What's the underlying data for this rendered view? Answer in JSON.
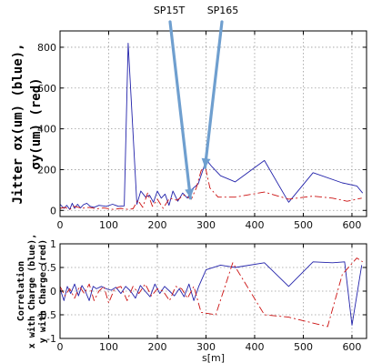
{
  "chart_data": [
    {
      "type": "line",
      "ylabel_line1": "Jitter σx(um) (blue),",
      "ylabel_line2": "σy(um) (red)",
      "xlim": [
        0,
        630
      ],
      "ylim": [
        -30,
        880
      ],
      "xticks": [
        0,
        100,
        200,
        300,
        400,
        500,
        600
      ],
      "yticks": [
        0,
        200,
        400,
        600,
        800
      ],
      "grid": true,
      "series": [
        {
          "color": "#2222aa",
          "dash": "solid",
          "x": [
            0,
            8,
            14,
            20,
            25,
            30,
            36,
            42,
            48,
            55,
            62,
            70,
            80,
            95,
            108,
            120,
            132,
            140,
            158,
            166,
            176,
            184,
            192,
            200,
            208,
            216,
            224,
            232,
            242,
            252,
            262,
            272,
            284,
            294,
            300,
            312,
            330,
            360,
            420,
            470,
            520,
            580,
            610,
            622
          ],
          "y": [
            30,
            10,
            25,
            5,
            35,
            10,
            30,
            12,
            28,
            35,
            20,
            15,
            25,
            20,
            30,
            20,
            22,
            820,
            30,
            95,
            65,
            75,
            40,
            95,
            60,
            80,
            25,
            95,
            45,
            85,
            60,
            105,
            130,
            200,
            250,
            215,
            170,
            140,
            245,
            40,
            185,
            135,
            120,
            85
          ]
        },
        {
          "color": "#cc1111",
          "dash": "8 3 2 3",
          "x": [
            0,
            10,
            20,
            30,
            45,
            60,
            75,
            90,
            110,
            125,
            140,
            150,
            160,
            170,
            180,
            190,
            200,
            212,
            225,
            240,
            255,
            270,
            280,
            290,
            298,
            308,
            325,
            360,
            420,
            470,
            520,
            560,
            590,
            620
          ],
          "y": [
            10,
            15,
            5,
            20,
            10,
            15,
            8,
            12,
            5,
            10,
            5,
            8,
            50,
            15,
            85,
            20,
            55,
            10,
            60,
            50,
            75,
            55,
            110,
            195,
            220,
            110,
            65,
            65,
            90,
            55,
            70,
            60,
            45,
            60
          ]
        }
      ]
    },
    {
      "type": "line",
      "ylabel_line1": "Correlation",
      "ylabel_line2": "x with Charge (blue),",
      "ylabel_line3": "y with Charge (red)",
      "xlabel": "s[m]",
      "xlim": [
        0,
        630
      ],
      "ylim": [
        -1,
        1
      ],
      "xticks": [
        0,
        100,
        200,
        300,
        400,
        500,
        600
      ],
      "yticks": [
        -1,
        -0.5,
        0,
        0.5,
        1
      ],
      "grid": true,
      "series": [
        {
          "color": "#2222aa",
          "dash": "solid",
          "x": [
            0,
            8,
            15,
            22,
            30,
            38,
            45,
            52,
            60,
            68,
            75,
            85,
            95,
            105,
            115,
            125,
            135,
            145,
            155,
            165,
            175,
            185,
            195,
            205,
            215,
            225,
            235,
            245,
            255,
            265,
            275,
            285,
            300,
            330,
            360,
            420,
            470,
            520,
            560,
            585,
            600,
            620
          ],
          "y": [
            0.05,
            -0.2,
            0.1,
            -0.05,
            0.15,
            -0.1,
            0.12,
            0.0,
            -0.2,
            0.1,
            0.05,
            0.1,
            0.05,
            0.02,
            0.08,
            -0.05,
            0.1,
            0.0,
            -0.15,
            0.12,
            0.0,
            -0.12,
            0.15,
            -0.05,
            0.1,
            0.0,
            -0.1,
            0.05,
            -0.12,
            0.15,
            -0.2,
            0.1,
            0.45,
            0.55,
            0.5,
            0.6,
            0.1,
            0.62,
            0.6,
            0.62,
            -0.72,
            0.55
          ]
        },
        {
          "color": "#cc1111",
          "dash": "8 3 2 3",
          "x": [
            0,
            10,
            20,
            30,
            40,
            50,
            60,
            70,
            80,
            90,
            100,
            112,
            125,
            138,
            150,
            162,
            175,
            188,
            200,
            212,
            225,
            238,
            250,
            262,
            275,
            290,
            320,
            355,
            420,
            470,
            550,
            580,
            610,
            622
          ],
          "y": [
            0.1,
            -0.1,
            0.05,
            -0.15,
            0.1,
            -0.05,
            0.15,
            -0.2,
            0.0,
            0.1,
            -0.25,
            0.05,
            0.1,
            -0.2,
            0.1,
            -0.05,
            0.15,
            -0.1,
            0.05,
            0.0,
            -0.2,
            0.1,
            0.05,
            -0.15,
            0.1,
            -0.45,
            -0.5,
            0.6,
            -0.5,
            -0.55,
            -0.75,
            0.35,
            0.7,
            0.62
          ]
        }
      ]
    }
  ],
  "annotations": [
    {
      "label": "SP15T",
      "point_to": {
        "x": 268,
        "y": 60
      }
    },
    {
      "label": "SP165",
      "point_to": {
        "x": 298,
        "y": 210
      }
    }
  ]
}
